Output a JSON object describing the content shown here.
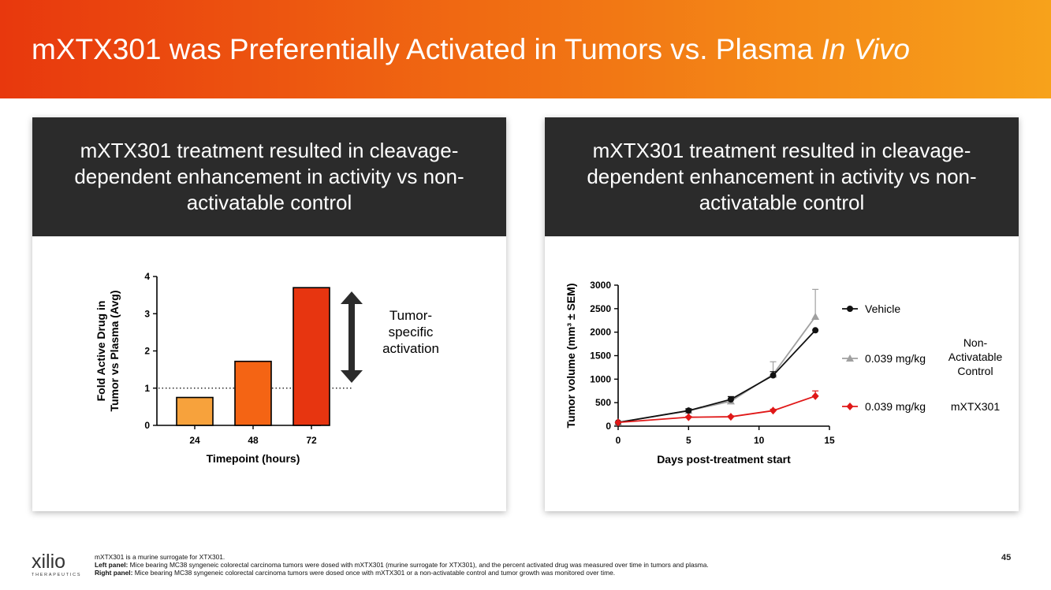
{
  "header": {
    "title_main": "mXTX301 was Preferentially Activated in Tumors vs. Plasma ",
    "title_italic": "In Vivo"
  },
  "left_panel": {
    "heading": "mXTX301 treatment resulted in cleavage-dependent enhancement in activity vs non-activatable control",
    "annotation": [
      "Tumor-",
      "specific",
      "activation"
    ]
  },
  "right_panel": {
    "heading": "mXTX301 treatment resulted in cleavage-dependent enhancement in activity vs non-activatable control",
    "group_label": [
      "Non-",
      "Activatable",
      "Control"
    ],
    "mxtx_label": "mXTX301"
  },
  "chart_data": [
    {
      "type": "bar",
      "title": "",
      "categories": [
        "24",
        "48",
        "72"
      ],
      "values": [
        0.75,
        1.72,
        3.7
      ],
      "colors": [
        "#f7a23c",
        "#f46414",
        "#e73510"
      ],
      "xlabel": "Timepoint (hours)",
      "ylabel": [
        "Fold Active Drug in",
        "Tumor vs Plasma (Avg)"
      ],
      "ylim": [
        0,
        4
      ],
      "yticks": [
        "0",
        "1",
        "2",
        "3",
        "4"
      ],
      "reference_line": 1
    },
    {
      "type": "line",
      "title": "",
      "xlabel": "Days post-treatment start",
      "ylabel": "Tumor volume (mm³ ± SEM)",
      "xlim": [
        0,
        15
      ],
      "ylim": [
        0,
        3000
      ],
      "xticks": [
        "0",
        "5",
        "10",
        "15"
      ],
      "yticks": [
        "0",
        "500",
        "1000",
        "1500",
        "2000",
        "2500",
        "3000"
      ],
      "x": [
        0,
        5,
        8,
        11,
        14
      ],
      "series": [
        {
          "name": "Vehicle",
          "color": "#111111",
          "marker": "circle",
          "values": [
            80,
            330,
            570,
            1080,
            2040
          ],
          "error": [
            0,
            40,
            60,
            80,
            0
          ]
        },
        {
          "name": "0.039 mg/kg",
          "color": "#a0a0a0",
          "marker": "triangle",
          "values": [
            80,
            330,
            530,
            1100,
            2330
          ],
          "error": [
            0,
            40,
            60,
            270,
            580
          ]
        },
        {
          "name": "0.039 mg/kg",
          "color": "#e01818",
          "marker": "diamond",
          "values": [
            80,
            190,
            200,
            330,
            640
          ],
          "error": [
            0,
            20,
            20,
            30,
            110
          ]
        }
      ]
    }
  ],
  "footer": {
    "line1": "mXTX301 is a murine surrogate for XTX301.",
    "line2_label": "Left panel:",
    "line2_text": " Mice bearing MC38 syngeneic colorectal carcinoma tumors were dosed with mXTX301 (murine surrogate for XTX301), and the percent activated drug was measured over time in tumors and plasma.",
    "line3_label": "Right panel:",
    "line3_text": " Mice bearing MC38 syngeneic colorectal carcinoma tumors were dosed once with mXTX301 or a non-activatable control and tumor growth was monitored over time.",
    "page_number": "45"
  },
  "logo": {
    "word": "xilio",
    "sub": "THERAPEUTICS"
  }
}
